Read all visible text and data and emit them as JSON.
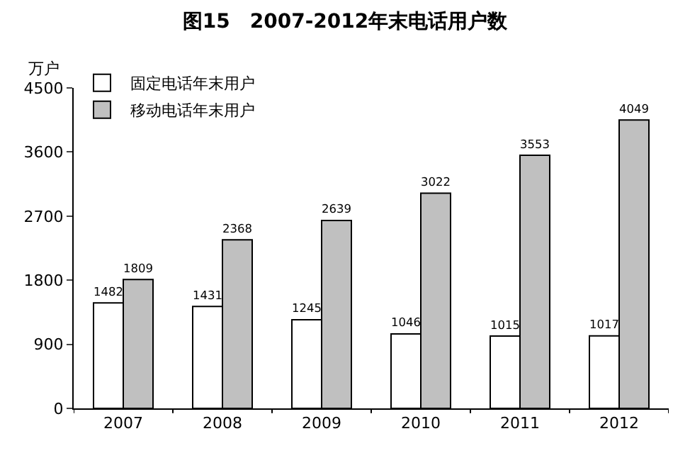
{
  "chart_data": {
    "type": "bar",
    "title": "图15　2007-2012年末电话用户数",
    "ylabel": "万户",
    "categories": [
      "2007",
      "2008",
      "2009",
      "2010",
      "2011",
      "2012"
    ],
    "series": [
      {
        "name": "固定电话年末用户",
        "color": "#ffffff",
        "values": [
          1482,
          1431,
          1245,
          1046,
          1015,
          1017
        ]
      },
      {
        "name": "移动电话年末用户",
        "color": "#c0c0c0",
        "values": [
          1809,
          2368,
          2639,
          3022,
          3553,
          4049
        ]
      }
    ],
    "ylim": [
      0,
      4500
    ],
    "yticks": [
      0,
      900,
      1800,
      2700,
      3600,
      4500
    ],
    "legend": "top left",
    "data_labels": true
  }
}
